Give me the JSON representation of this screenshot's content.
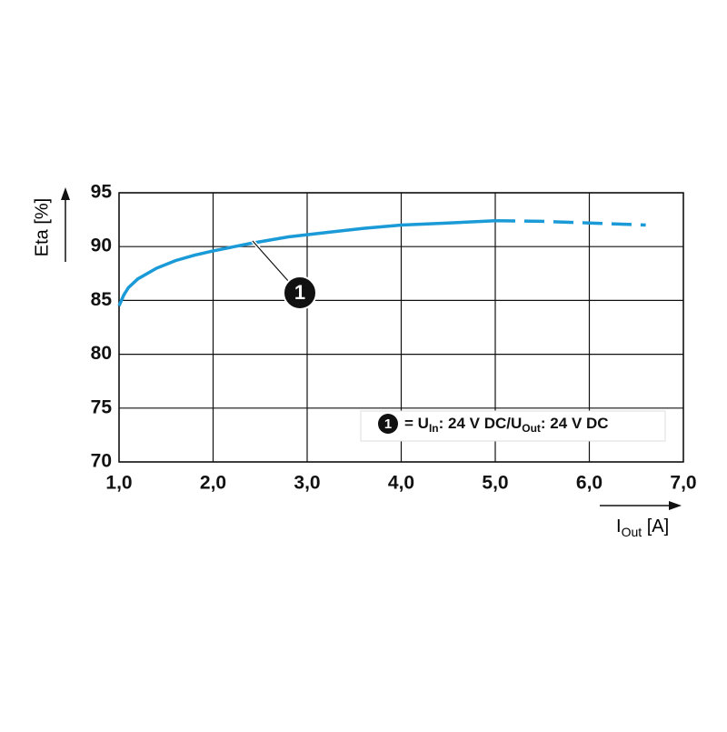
{
  "chart_data": {
    "type": "line",
    "y_label": "Eta [%]",
    "x_label": {
      "main": "I",
      "sub": "Out",
      "unit": " [A]"
    },
    "x": [
      1.0,
      1.05,
      1.1,
      1.2,
      1.4,
      1.6,
      1.8,
      2.0,
      2.4,
      2.8,
      3.2,
      3.6,
      4.0,
      4.5,
      5.0,
      5.5,
      6.0,
      6.6
    ],
    "series": [
      {
        "color": "#1a9ad6",
        "style": "solid",
        "values": [
          84.5,
          85.5,
          86.2,
          87.0,
          88.0,
          88.7,
          89.2,
          89.6,
          90.3,
          90.9,
          91.3,
          91.7,
          92.0,
          92.2,
          92.4,
          null,
          null,
          null
        ]
      },
      {
        "color": "#1a9ad6",
        "style": "dashed",
        "values": [
          null,
          null,
          null,
          null,
          null,
          null,
          null,
          null,
          null,
          null,
          null,
          null,
          null,
          null,
          92.4,
          92.35,
          92.2,
          92.0
        ]
      }
    ],
    "annotation": "1",
    "legend": {
      "marker": "1",
      "parts": [
        "= U",
        "In",
        ": 24 V DC/U",
        "Out",
        ": 24 V DC"
      ]
    },
    "xlim": [
      1,
      7
    ],
    "xticks": [
      {
        "value": 1,
        "label": "1,0"
      },
      {
        "value": 2,
        "label": "2,0"
      },
      {
        "value": 3,
        "label": "3,0"
      },
      {
        "value": 4,
        "label": "4,0"
      },
      {
        "value": 5,
        "label": "5,0"
      },
      {
        "value": 6,
        "label": "6,0"
      },
      {
        "value": 7,
        "label": "7,0"
      }
    ],
    "ylim": [
      70,
      95
    ],
    "yticks": [
      70,
      75,
      80,
      85,
      90,
      95
    ],
    "grid": true
  }
}
